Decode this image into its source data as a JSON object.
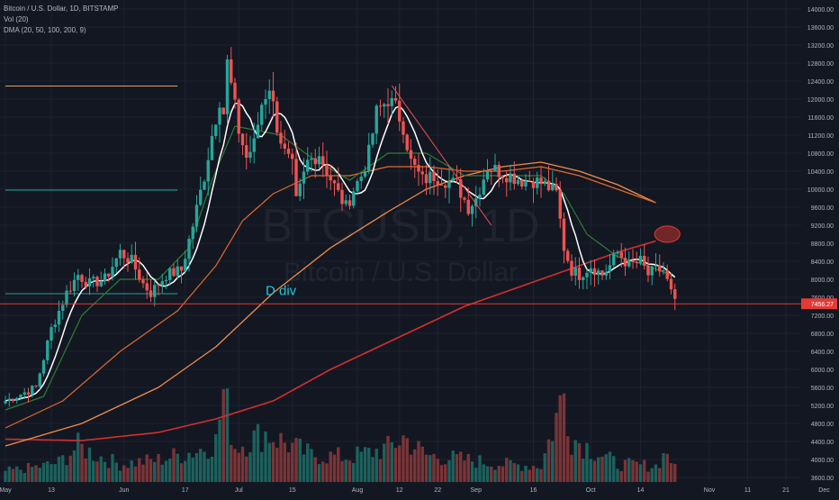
{
  "header": {
    "symbol_line": "Bitcoin / U.S. Dollar, 1D, BITSTAMP",
    "vol_line": "Vol (20)",
    "dma_line": "DMA (20, 50, 100, 200, 9)"
  },
  "watermark": {
    "ticker": "BTCUSD, 1D",
    "name": "Bitcoin / U.S. Dollar"
  },
  "annotation": {
    "text": "D div"
  },
  "price_tag": {
    "value": "7456.27"
  },
  "colors": {
    "background": "#131722",
    "up": "#26a69a",
    "down": "#ef5350",
    "dma_fast": "#ffffff",
    "dma_20": "#2e7d32",
    "dma_50": "#e06a2e",
    "dma_100": "#f08c4a",
    "dma_200": "#d32f2f",
    "price_line": "#e53935"
  },
  "chart_data": {
    "type": "candlestick",
    "ylim": [
      3500,
      14200
    ],
    "y_ticks": [
      "14000.00",
      "13600.00",
      "13200.00",
      "12800.00",
      "12400.00",
      "12000.00",
      "11600.00",
      "11200.00",
      "10800.00",
      "10400.00",
      "10000.00",
      "9600.00",
      "9200.00",
      "8800.00",
      "8400.00",
      "8000.00",
      "7600.00",
      "7200.00",
      "6800.00",
      "6400.00",
      "6000.00",
      "5600.00",
      "5200.00",
      "4800.00",
      "4400.00",
      "4000.00",
      "3600.00"
    ],
    "x_ticks": [
      {
        "label": "May",
        "day": 0
      },
      {
        "label": "13",
        "day": 12
      },
      {
        "label": "Jun",
        "day": 31
      },
      {
        "label": "17",
        "day": 47
      },
      {
        "label": "Jul",
        "day": 61
      },
      {
        "label": "15",
        "day": 75
      },
      {
        "label": "Aug",
        "day": 92
      },
      {
        "label": "12",
        "day": 103
      },
      {
        "label": "22",
        "day": 113
      },
      {
        "label": "Sep",
        "day": 123
      },
      {
        "label": "16",
        "day": 138
      },
      {
        "label": "Oct",
        "day": 153
      },
      {
        "label": "14",
        "day": 166
      },
      {
        "label": "Nov",
        "day": 184
      },
      {
        "label": "11",
        "day": 194
      },
      {
        "label": "21",
        "day": 204
      },
      {
        "label": "Dec",
        "day": 214
      }
    ],
    "last_day": 175,
    "close_keypoints": [
      [
        0,
        5300
      ],
      [
        8,
        5600
      ],
      [
        12,
        6900
      ],
      [
        16,
        7700
      ],
      [
        19,
        8100
      ],
      [
        22,
        7900
      ],
      [
        26,
        8000
      ],
      [
        30,
        8600
      ],
      [
        33,
        8400
      ],
      [
        36,
        7900
      ],
      [
        38,
        7700
      ],
      [
        42,
        8100
      ],
      [
        46,
        8200
      ],
      [
        49,
        9200
      ],
      [
        52,
        10300
      ],
      [
        54,
        11200
      ],
      [
        56,
        12000
      ],
      [
        57,
        11700
      ],
      [
        58,
        12800
      ],
      [
        61,
        11300
      ],
      [
        63,
        10700
      ],
      [
        65,
        11000
      ],
      [
        67,
        11900
      ],
      [
        69,
        12300
      ],
      [
        71,
        11400
      ],
      [
        73,
        10800
      ],
      [
        75,
        10500
      ],
      [
        76,
        9700
      ],
      [
        79,
        10600
      ],
      [
        82,
        10800
      ],
      [
        84,
        10400
      ],
      [
        87,
        9900
      ],
      [
        89,
        9600
      ],
      [
        91,
        10000
      ],
      [
        93,
        10300
      ],
      [
        95,
        10800
      ],
      [
        97,
        11700
      ],
      [
        100,
        12000
      ],
      [
        102,
        11800
      ],
      [
        104,
        11400
      ],
      [
        106,
        10600
      ],
      [
        109,
        10200
      ],
      [
        112,
        10300
      ],
      [
        115,
        10200
      ],
      [
        118,
        10100
      ],
      [
        121,
        9600
      ],
      [
        123,
        9800
      ],
      [
        126,
        10500
      ],
      [
        129,
        10400
      ],
      [
        132,
        10300
      ],
      [
        135,
        10200
      ],
      [
        138,
        10200
      ],
      [
        141,
        10100
      ],
      [
        144,
        9900
      ],
      [
        146,
        8700
      ],
      [
        148,
        8200
      ],
      [
        150,
        8100
      ],
      [
        153,
        8300
      ],
      [
        156,
        8100
      ],
      [
        158,
        8300
      ],
      [
        160,
        8600
      ],
      [
        163,
        8300
      ],
      [
        166,
        8400
      ],
      [
        168,
        8100
      ],
      [
        170,
        8200
      ],
      [
        172,
        8200
      ],
      [
        174,
        7700
      ],
      [
        175,
        7456
      ]
    ],
    "vol_keypoints": [
      [
        0,
        12
      ],
      [
        10,
        18
      ],
      [
        14,
        22
      ],
      [
        19,
        40
      ],
      [
        25,
        28
      ],
      [
        30,
        20
      ],
      [
        40,
        25
      ],
      [
        45,
        30
      ],
      [
        50,
        35
      ],
      [
        55,
        45
      ],
      [
        57,
        100
      ],
      [
        60,
        40
      ],
      [
        63,
        45
      ],
      [
        68,
        55
      ],
      [
        75,
        40
      ],
      [
        80,
        30
      ],
      [
        90,
        28
      ],
      [
        100,
        38
      ],
      [
        104,
        50
      ],
      [
        110,
        30
      ],
      [
        120,
        25
      ],
      [
        130,
        20
      ],
      [
        140,
        18
      ],
      [
        146,
        100
      ],
      [
        148,
        50
      ],
      [
        150,
        45
      ],
      [
        160,
        20
      ],
      [
        170,
        18
      ],
      [
        173,
        35
      ],
      [
        175,
        15
      ]
    ],
    "dma_20": [
      [
        0,
        5100
      ],
      [
        10,
        5400
      ],
      [
        20,
        7200
      ],
      [
        30,
        8000
      ],
      [
        40,
        8000
      ],
      [
        48,
        8700
      ],
      [
        54,
        10200
      ],
      [
        60,
        11400
      ],
      [
        66,
        11300
      ],
      [
        72,
        11200
      ],
      [
        80,
        10700
      ],
      [
        90,
        10200
      ],
      [
        100,
        10800
      ],
      [
        110,
        10800
      ],
      [
        120,
        10300
      ],
      [
        130,
        10300
      ],
      [
        140,
        10300
      ],
      [
        146,
        9900
      ],
      [
        152,
        9000
      ],
      [
        160,
        8500
      ],
      [
        168,
        8300
      ],
      [
        175,
        8050
      ]
    ],
    "dma_50": [
      [
        0,
        4700
      ],
      [
        15,
        5300
      ],
      [
        30,
        6400
      ],
      [
        45,
        7300
      ],
      [
        55,
        8300
      ],
      [
        62,
        9300
      ],
      [
        70,
        9900
      ],
      [
        80,
        10300
      ],
      [
        90,
        10300
      ],
      [
        100,
        10500
      ],
      [
        110,
        10500
      ],
      [
        120,
        10400
      ],
      [
        130,
        10400
      ],
      [
        140,
        10500
      ],
      [
        150,
        10300
      ],
      [
        160,
        10000
      ],
      [
        170,
        9700
      ]
    ],
    "dma_100": [
      [
        0,
        4300
      ],
      [
        20,
        4800
      ],
      [
        40,
        5600
      ],
      [
        55,
        6500
      ],
      [
        70,
        7700
      ],
      [
        85,
        8700
      ],
      [
        100,
        9500
      ],
      [
        110,
        10000
      ],
      [
        120,
        10300
      ],
      [
        130,
        10500
      ],
      [
        140,
        10600
      ],
      [
        150,
        10400
      ],
      [
        160,
        10100
      ],
      [
        170,
        9700
      ]
    ],
    "dma_200": [
      [
        0,
        4450
      ],
      [
        20,
        4420
      ],
      [
        40,
        4600
      ],
      [
        55,
        4900
      ],
      [
        70,
        5300
      ],
      [
        85,
        6000
      ],
      [
        100,
        6600
      ],
      [
        110,
        7000
      ],
      [
        120,
        7400
      ],
      [
        130,
        7700
      ],
      [
        140,
        8000
      ],
      [
        150,
        8300
      ],
      [
        160,
        8600
      ],
      [
        170,
        8850
      ]
    ],
    "h_lines": [
      {
        "y": 12290,
        "day_start": 0,
        "day_end": 45,
        "color": "#e0a060"
      },
      {
        "y": 9980,
        "day_start": 0,
        "day_end": 45,
        "color": "#26a69a"
      },
      {
        "y": 7680,
        "day_start": 0,
        "day_end": 45,
        "color": "#26a69a"
      }
    ],
    "trend_lines": [
      {
        "from": [
          101,
          12300
        ],
        "to": [
          127,
          9200
        ],
        "color": "#ef5350"
      }
    ],
    "ellipse": {
      "day": 173,
      "price": 9000
    },
    "annotation_pos": {
      "day": 68,
      "price": 7650
    },
    "price_line_value": 7456
  }
}
